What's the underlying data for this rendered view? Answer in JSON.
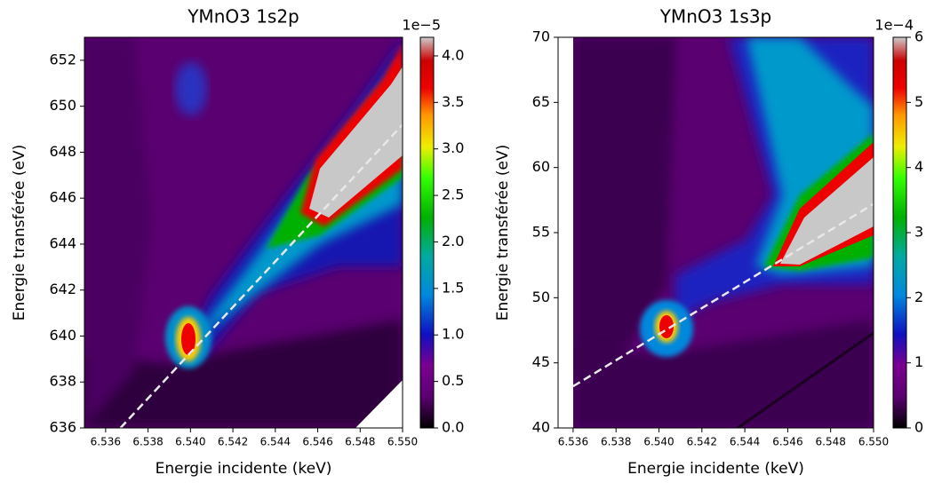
{
  "chart_data": [
    {
      "type": "heatmap",
      "title": "YMnO3 1s2p",
      "x_label": "Energie incidente (keV)",
      "y_label": "Energie transférée (eV)",
      "xlim": [
        6.535,
        6.55
      ],
      "xticks": [
        6.536,
        6.538,
        {
          "value": 6.54,
          "label": "6.540"
        },
        6.542,
        6.544,
        6.546,
        6.548,
        {
          "value": 6.55,
          "label": "6.550"
        }
      ],
      "ylim": [
        636,
        653
      ],
      "yticks": [
        636,
        638,
        640,
        642,
        644,
        646,
        648,
        650,
        652
      ],
      "colorbar_lim": [
        0,
        4.2
      ],
      "colorbar_offset": "1e−5",
      "colorbar_ticks": [
        {
          "value": 0,
          "label": "0.0"
        },
        0.5,
        {
          "value": 1,
          "label": "1.0"
        },
        1.5,
        {
          "value": 2,
          "label": "2.0"
        },
        2.5,
        {
          "value": 3,
          "label": "3.0"
        },
        3.5,
        {
          "value": 4,
          "label": "4.0"
        }
      ],
      "guide_line": {
        "color": "#e8e8e8",
        "x": [
          6.5367,
          6.55
        ],
        "y": [
          636,
          649.2
        ]
      }
    },
    {
      "type": "heatmap",
      "title": "YMnO3 1s3p",
      "x_label": "Energie incidente (keV)",
      "y_label": "Energie transférée (eV)",
      "xlim": [
        6.5353,
        6.55
      ],
      "xticks": [
        6.536,
        6.538,
        {
          "value": 6.54,
          "label": "6.540"
        },
        6.542,
        6.544,
        6.546,
        6.548,
        {
          "value": 6.55,
          "label": "6.550"
        }
      ],
      "ylim": [
        40,
        70
      ],
      "yticks": [
        40,
        45,
        50,
        55,
        60,
        65,
        70
      ],
      "colorbar_lim": [
        0,
        6
      ],
      "colorbar_offset": "1e−4",
      "colorbar_ticks": [
        0,
        1,
        2,
        3,
        4,
        5,
        6
      ],
      "guide_line": {
        "color": "#e8e8e8",
        "x": [
          6.536,
          6.55
        ],
        "y": [
          43.2,
          57.2
        ]
      }
    }
  ]
}
